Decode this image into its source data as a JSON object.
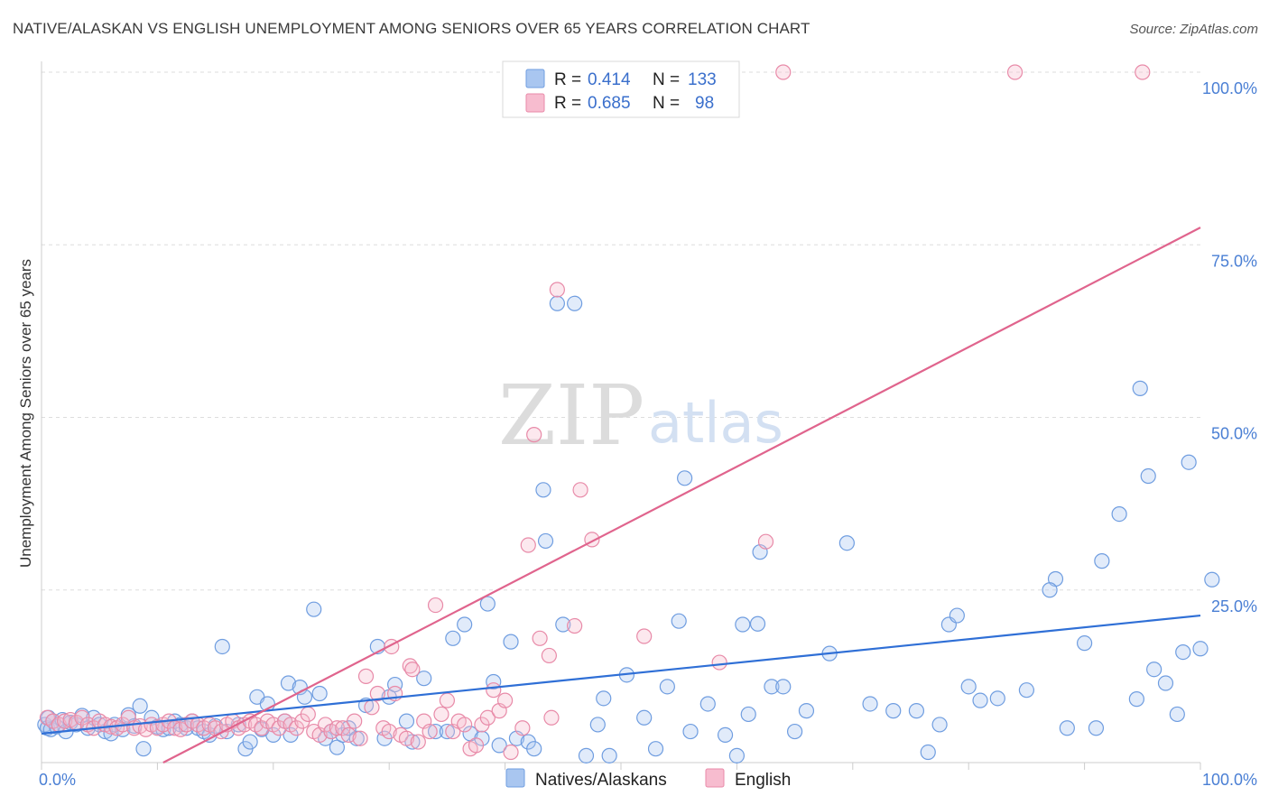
{
  "header": {
    "title": "NATIVE/ALASKAN VS ENGLISH UNEMPLOYMENT AMONG SENIORS OVER 65 YEARS CORRELATION CHART",
    "source": "Source: ZipAtlas.com"
  },
  "watermark": {
    "zip": "ZIP",
    "atlas": "atlas"
  },
  "legend_box": {
    "rows": [
      {
        "r_label": "R =",
        "r_value": "0.414",
        "n_label": "N =",
        "n_value": "133",
        "color": "#a9c6f0",
        "edge": "#6f9de0"
      },
      {
        "r_label": "R =",
        "r_value": "0.685",
        "n_label": "N =",
        "n_value": "98",
        "color": "#f7bccf",
        "edge": "#e88aa8"
      }
    ]
  },
  "bottom_legend": {
    "items": [
      {
        "label": "Natives/Alaskans",
        "color": "#a9c6f0",
        "edge": "#6f9de0"
      },
      {
        "label": "English",
        "color": "#f7bccf",
        "edge": "#e88aa8"
      }
    ]
  },
  "chart_data": {
    "type": "scatter",
    "title": "NATIVE/ALASKAN VS ENGLISH UNEMPLOYMENT AMONG SENIORS OVER 65 YEARS CORRELATION CHART",
    "xlabel": "",
    "ylabel": "Unemployment Among Seniors over 65 years",
    "xlim": [
      0,
      100
    ],
    "ylim": [
      0,
      100
    ],
    "x_tick_labels": [
      "0.0%",
      "100.0%"
    ],
    "y_ticks": [
      25,
      50,
      75,
      100
    ],
    "y_tick_labels": [
      "25.0%",
      "50.0%",
      "75.0%",
      "100.0%"
    ],
    "grid": "horizontal dashed",
    "legend_placement": "bottom-center",
    "series": [
      {
        "name": "Natives/Alaskans",
        "color": "#6f9de0",
        "fill": "#a9c6f0",
        "trend": {
          "x": [
            0,
            100
          ],
          "y": [
            4.2,
            21.3
          ],
          "color": "#2f6fd6"
        },
        "points": [
          [
            0.3,
            5.5
          ],
          [
            0.5,
            5.0
          ],
          [
            0.6,
            6.5
          ],
          [
            0.8,
            4.8
          ],
          [
            1.0,
            6.0
          ],
          [
            1.3,
            5.2
          ],
          [
            1.8,
            6.2
          ],
          [
            2.1,
            4.5
          ],
          [
            2.5,
            5.8
          ],
          [
            3.0,
            5.5
          ],
          [
            3.5,
            6.8
          ],
          [
            4.0,
            5.0
          ],
          [
            4.5,
            6.5
          ],
          [
            5.0,
            5.5
          ],
          [
            5.5,
            4.5
          ],
          [
            6.0,
            4.2
          ],
          [
            6.3,
            5.5
          ],
          [
            7.0,
            4.8
          ],
          [
            7.5,
            6.9
          ],
          [
            8.0,
            5.3
          ],
          [
            8.5,
            8.2
          ],
          [
            8.8,
            2.0
          ],
          [
            9.5,
            6.5
          ],
          [
            10.0,
            5.2
          ],
          [
            10.5,
            4.8
          ],
          [
            11.0,
            5.0
          ],
          [
            11.5,
            6.0
          ],
          [
            12.0,
            5.5
          ],
          [
            12.5,
            5.0
          ],
          [
            13.0,
            6.0
          ],
          [
            13.5,
            5.0
          ],
          [
            14.0,
            4.5
          ],
          [
            14.5,
            4.0
          ],
          [
            15.0,
            5.3
          ],
          [
            15.6,
            16.8
          ],
          [
            16.0,
            4.5
          ],
          [
            17.0,
            5.5
          ],
          [
            17.6,
            2.0
          ],
          [
            18.0,
            3.0
          ],
          [
            18.6,
            9.5
          ],
          [
            19.0,
            4.8
          ],
          [
            19.5,
            8.5
          ],
          [
            20.0,
            4.0
          ],
          [
            21.0,
            6.0
          ],
          [
            21.3,
            11.5
          ],
          [
            21.5,
            4.0
          ],
          [
            22.3,
            10.9
          ],
          [
            22.7,
            9.5
          ],
          [
            23.5,
            22.2
          ],
          [
            24.0,
            10.0
          ],
          [
            24.5,
            3.5
          ],
          [
            25.0,
            4.5
          ],
          [
            25.5,
            2.2
          ],
          [
            26.0,
            4.0
          ],
          [
            26.5,
            5.0
          ],
          [
            27.2,
            3.5
          ],
          [
            28.0,
            8.3
          ],
          [
            29.0,
            16.8
          ],
          [
            29.6,
            3.5
          ],
          [
            30.0,
            9.5
          ],
          [
            30.5,
            11.3
          ],
          [
            31.5,
            6.0
          ],
          [
            32.0,
            3.0
          ],
          [
            33.0,
            12.2
          ],
          [
            34.0,
            4.5
          ],
          [
            35.0,
            4.5
          ],
          [
            35.5,
            18.0
          ],
          [
            36.5,
            20.0
          ],
          [
            37.0,
            4.2
          ],
          [
            38.0,
            3.5
          ],
          [
            38.5,
            23.0
          ],
          [
            39.0,
            11.7
          ],
          [
            39.5,
            2.5
          ],
          [
            40.5,
            17.5
          ],
          [
            41.0,
            3.5
          ],
          [
            42.0,
            3.0
          ],
          [
            42.5,
            2.0
          ],
          [
            43.3,
            39.5
          ],
          [
            43.5,
            32.1
          ],
          [
            44.5,
            66.5
          ],
          [
            45.0,
            20.0
          ],
          [
            46.0,
            66.5
          ],
          [
            47.0,
            1.0
          ],
          [
            48.0,
            5.5
          ],
          [
            48.5,
            9.3
          ],
          [
            49.0,
            1.0
          ],
          [
            50.5,
            12.7
          ],
          [
            52.0,
            6.5
          ],
          [
            53.0,
            2.0
          ],
          [
            54.0,
            11.0
          ],
          [
            55.0,
            20.5
          ],
          [
            55.5,
            41.2
          ],
          [
            56.0,
            4.5
          ],
          [
            57.5,
            8.5
          ],
          [
            59.0,
            4.0
          ],
          [
            60.0,
            1.0
          ],
          [
            60.5,
            20.0
          ],
          [
            61.0,
            7.0
          ],
          [
            62.0,
            30.5
          ],
          [
            61.8,
            20.1
          ],
          [
            63.0,
            11.0
          ],
          [
            64.0,
            11.0
          ],
          [
            65.0,
            4.5
          ],
          [
            66.0,
            7.5
          ],
          [
            68.0,
            15.8
          ],
          [
            69.5,
            31.8
          ],
          [
            71.5,
            8.5
          ],
          [
            73.5,
            7.5
          ],
          [
            75.5,
            7.5
          ],
          [
            76.5,
            1.5
          ],
          [
            77.5,
            5.5
          ],
          [
            78.3,
            20.0
          ],
          [
            79.0,
            21.3
          ],
          [
            80.0,
            11.0
          ],
          [
            81.0,
            9.0
          ],
          [
            82.5,
            9.3
          ],
          [
            85.0,
            10.5
          ],
          [
            88.5,
            5.0
          ],
          [
            87.5,
            26.6
          ],
          [
            87.0,
            25.0
          ],
          [
            90.0,
            17.3
          ],
          [
            91.0,
            5.0
          ],
          [
            91.5,
            29.2
          ],
          [
            93.0,
            36.0
          ],
          [
            94.5,
            9.2
          ],
          [
            94.8,
            54.2
          ],
          [
            95.5,
            41.5
          ],
          [
            96.0,
            13.5
          ],
          [
            97.0,
            11.5
          ],
          [
            98.0,
            7.0
          ],
          [
            98.5,
            16.0
          ],
          [
            99.0,
            43.5
          ],
          [
            100.0,
            16.5
          ],
          [
            101.0,
            26.5
          ]
        ]
      },
      {
        "name": "English",
        "color": "#e88aa8",
        "fill": "#f7bccf",
        "trend": {
          "x": [
            10.5,
            100
          ],
          "y": [
            0.0,
            77.5
          ],
          "color": "#e0648d"
        },
        "points": [
          [
            0.5,
            6.5
          ],
          [
            1.0,
            6.0
          ],
          [
            1.5,
            5.5
          ],
          [
            2.0,
            6.0
          ],
          [
            2.5,
            6.2
          ],
          [
            3.0,
            5.8
          ],
          [
            3.5,
            6.5
          ],
          [
            4.0,
            5.5
          ],
          [
            4.5,
            5.0
          ],
          [
            5.0,
            6.0
          ],
          [
            5.5,
            5.5
          ],
          [
            6.0,
            5.2
          ],
          [
            6.5,
            5.0
          ],
          [
            7.0,
            5.5
          ],
          [
            7.5,
            6.5
          ],
          [
            8.0,
            5.0
          ],
          [
            8.5,
            5.3
          ],
          [
            9.0,
            4.8
          ],
          [
            9.5,
            5.5
          ],
          [
            10.0,
            5.0
          ],
          [
            10.5,
            5.5
          ],
          [
            11.0,
            6.0
          ],
          [
            11.5,
            5.0
          ],
          [
            12.0,
            4.8
          ],
          [
            12.5,
            5.5
          ],
          [
            13.0,
            6.0
          ],
          [
            13.5,
            5.5
          ],
          [
            14.0,
            5.0
          ],
          [
            14.5,
            5.5
          ],
          [
            15.0,
            5.0
          ],
          [
            15.5,
            4.5
          ],
          [
            16.0,
            5.5
          ],
          [
            16.5,
            6.0
          ],
          [
            17.0,
            5.0
          ],
          [
            17.5,
            5.5
          ],
          [
            18.0,
            6.0
          ],
          [
            18.5,
            5.5
          ],
          [
            19.0,
            5.0
          ],
          [
            19.5,
            6.0
          ],
          [
            20.0,
            5.5
          ],
          [
            20.5,
            5.0
          ],
          [
            21.0,
            6.0
          ],
          [
            21.5,
            5.5
          ],
          [
            22.0,
            5.0
          ],
          [
            22.5,
            6.0
          ],
          [
            23.0,
            7.0
          ],
          [
            23.5,
            4.5
          ],
          [
            24.0,
            4.0
          ],
          [
            24.5,
            5.5
          ],
          [
            25.0,
            4.5
          ],
          [
            25.5,
            5.0
          ],
          [
            26.0,
            5.0
          ],
          [
            26.5,
            4.0
          ],
          [
            27.0,
            6.0
          ],
          [
            27.5,
            3.5
          ],
          [
            28.0,
            12.5
          ],
          [
            28.5,
            8.0
          ],
          [
            29.0,
            10.0
          ],
          [
            29.5,
            5.0
          ],
          [
            30.0,
            4.5
          ],
          [
            30.2,
            16.8
          ],
          [
            30.5,
            10.0
          ],
          [
            31.0,
            4.0
          ],
          [
            31.5,
            3.5
          ],
          [
            31.8,
            14.0
          ],
          [
            32.0,
            13.5
          ],
          [
            32.5,
            3.0
          ],
          [
            33.0,
            6.0
          ],
          [
            33.5,
            4.5
          ],
          [
            34.0,
            22.8
          ],
          [
            34.5,
            7.0
          ],
          [
            35.0,
            9.0
          ],
          [
            35.5,
            4.5
          ],
          [
            36.0,
            6.0
          ],
          [
            36.5,
            5.5
          ],
          [
            37.0,
            2.0
          ],
          [
            37.5,
            2.5
          ],
          [
            38.0,
            5.5
          ],
          [
            38.5,
            6.5
          ],
          [
            39.0,
            10.5
          ],
          [
            39.5,
            7.5
          ],
          [
            40.0,
            9.0
          ],
          [
            40.5,
            1.5
          ],
          [
            41.5,
            5.0
          ],
          [
            42.0,
            31.5
          ],
          [
            42.5,
            47.5
          ],
          [
            43.0,
            18.0
          ],
          [
            44.0,
            6.5
          ],
          [
            43.8,
            15.5
          ],
          [
            44.5,
            68.5
          ],
          [
            46.0,
            19.8
          ],
          [
            46.5,
            39.5
          ],
          [
            47.5,
            32.3
          ],
          [
            52.0,
            18.3
          ],
          [
            58.5,
            14.5
          ],
          [
            62.5,
            32.0
          ],
          [
            64.0,
            100.0
          ],
          [
            84.0,
            100.0
          ],
          [
            95.0,
            100.0
          ]
        ]
      }
    ]
  }
}
